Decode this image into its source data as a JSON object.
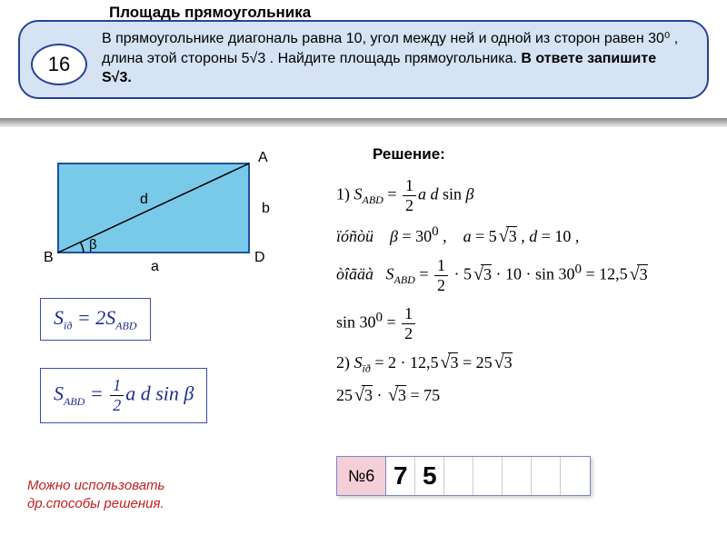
{
  "header": {
    "number": "16",
    "title": "Площадь прямоугольника",
    "text": "В прямоугольнике диагональ равна 10, угол между ней и одной из сторон равен 30⁰ , длина этой стороны 5√3 . Найдите площадь прямоугольника. ",
    "bold_tail": "В ответе запишите S√3."
  },
  "diagram": {
    "labels": {
      "A": "A",
      "B": "B",
      "D": "D",
      "a": "a",
      "b": "b",
      "d": "d",
      "beta": "β"
    },
    "rect_fill": "#79c9e8",
    "rect_stroke": "#1d4fa3"
  },
  "formulas": {
    "f1_html": "<span class='it'>S</span><span class='sub'>ïð</span> = 2<span class='it'>S</span><span class='sub'>ABD</span>",
    "f2_html": "<span class='it'>S</span><span class='sub'>ABD</span> = <span class='frac'><span class='top'>1</span><span class='bot'>2</span></span><span class='it'>a d</span> sin <span class='it'>β</span>"
  },
  "solution": {
    "title": "Решение:",
    "lines": [
      "1) <span class='it'>S</span><span class='sub'>ABD</span> = <span class='frac'><span class='top'>1</span><span class='bot'>2</span></span><span class='it'>a d</span> sin <span class='it'>β</span>",
      "<span class='it'>ïóñòü</span>&nbsp;&nbsp;&nbsp; <span class='it'>β</span> = 30<sup>0</sup> ,&nbsp;&nbsp;&nbsp; <span class='it'>a</span> = 5<span class='sqrt'><span class='rad'>√</span>3</span> , <span class='it'>d</span> = 10 ,",
      "<span class='it'>òîãäà</span>&nbsp;&nbsp; <span class='it'>S</span><span class='sub'>ABD</span> = <span class='frac'><span class='top'>1</span><span class='bot'>2</span></span> · 5<span class='sqrt'><span class='rad'>√</span>3</span> · 10 · sin 30<sup>0</sup> = 12,5<span class='sqrt'><span class='rad'>√</span>3</span>",
      "sin 30<sup>0</sup> = <span class='frac'><span class='top'>1</span><span class='bot'>2</span></span>",
      "2) <span class='it'>S</span><span class='sub'>ïð</span> = 2 · 12,5<span class='sqrt'><span class='rad'>√</span>3</span> = 25<span class='sqrt'><span class='rad'>√</span>3</span>",
      "25<span class='sqrt'><span class='rad'>√</span>3</span> · <span class='sqrt'><span class='rad'>√</span>3</span> = 75"
    ]
  },
  "red_note": "Можно использовать<br>др.способы решения.",
  "answer": {
    "label": "№6",
    "cells": [
      "7",
      "5",
      "",
      "",
      "",
      "",
      ""
    ]
  }
}
